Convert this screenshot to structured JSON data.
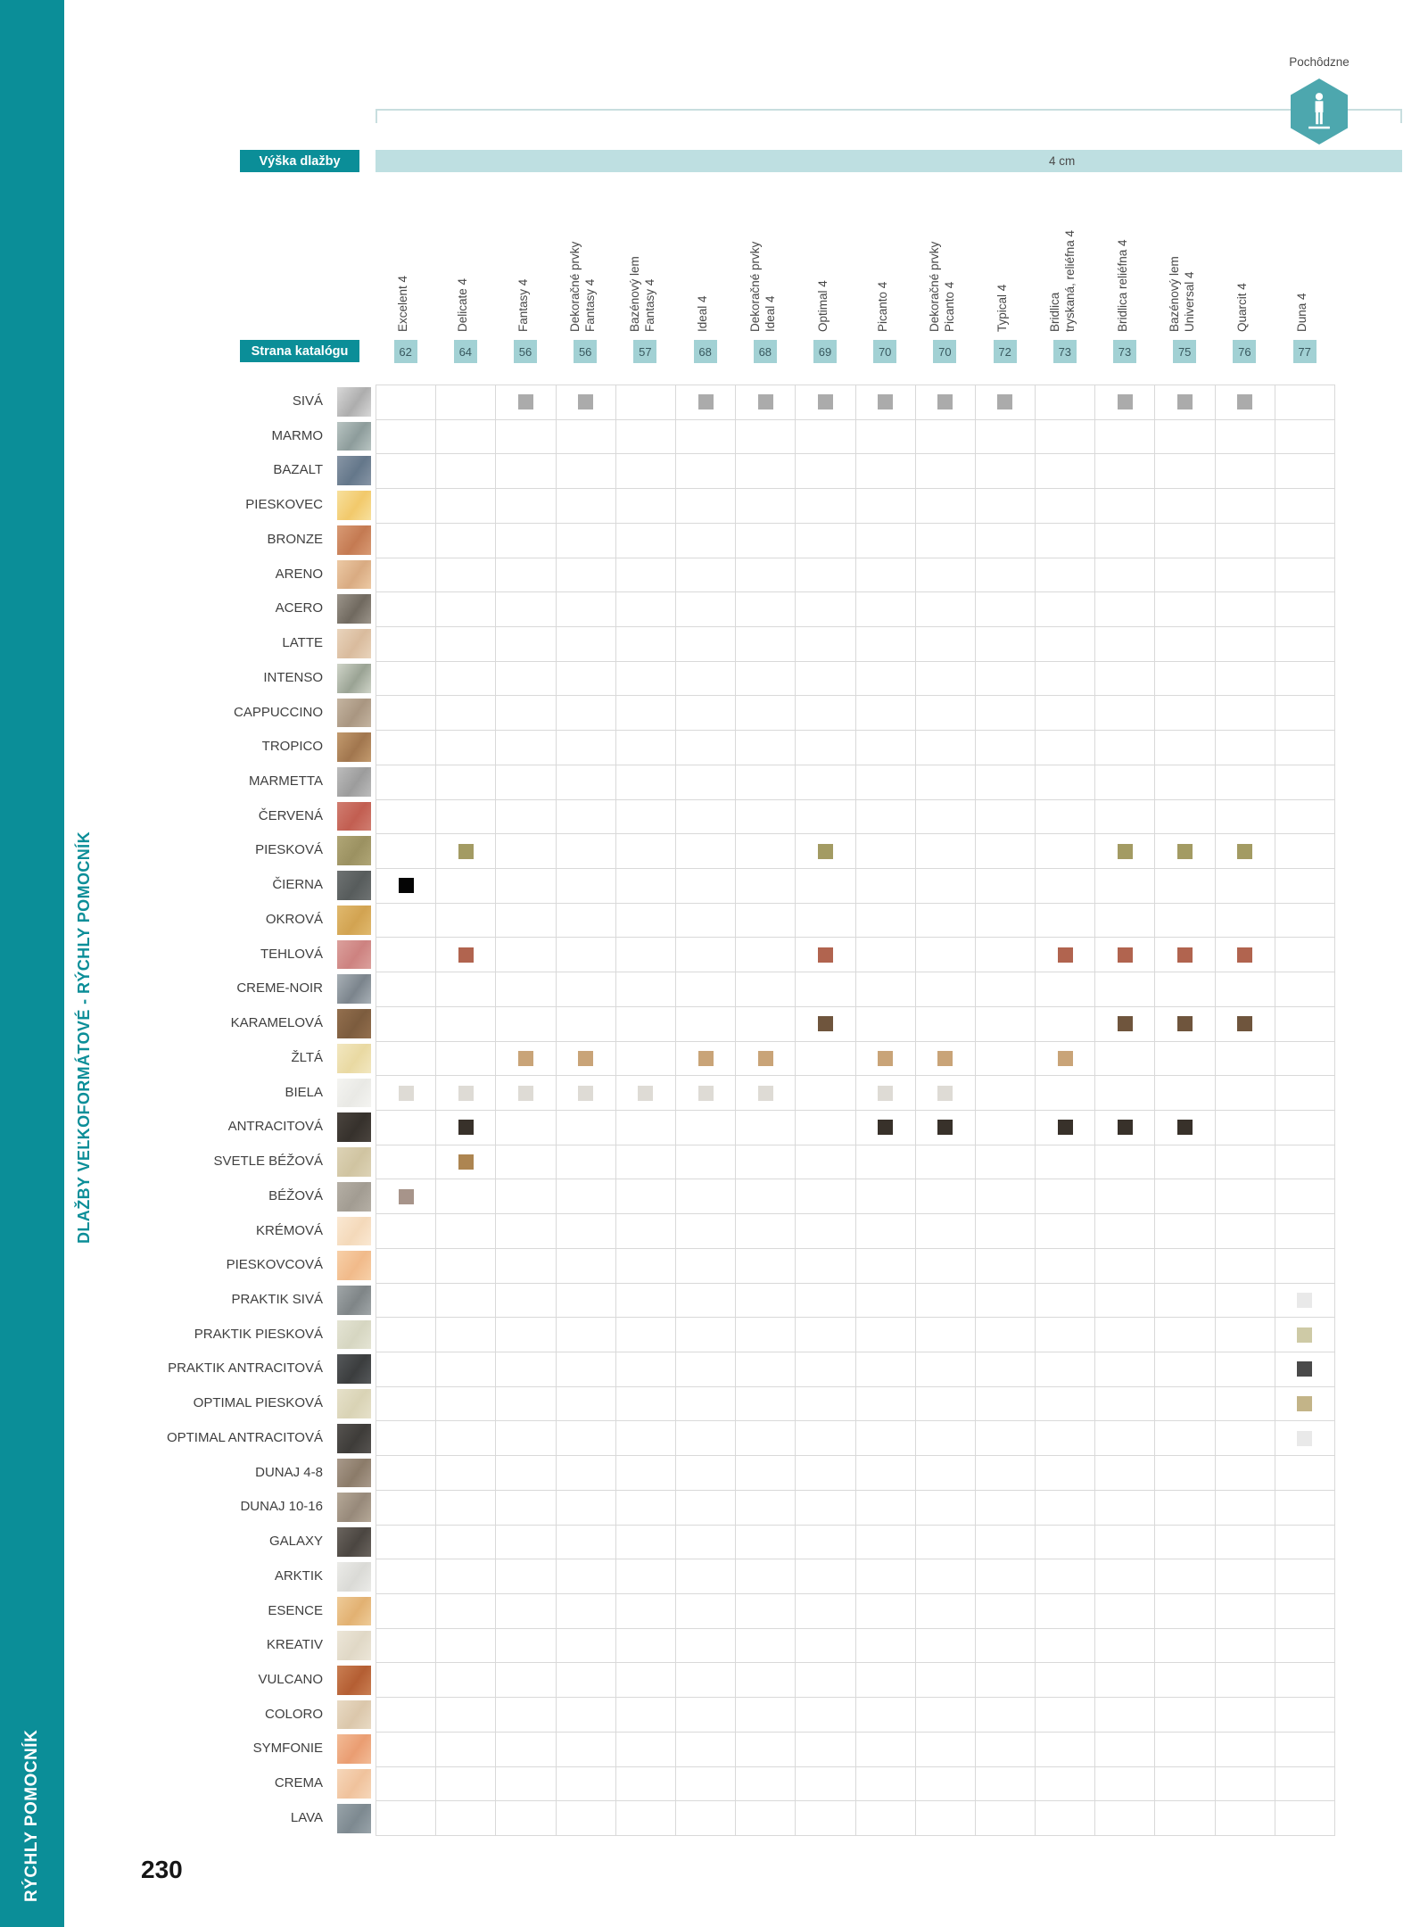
{
  "sidebar": {
    "vertical_text": "RÝCHLY POMOCNÍK"
  },
  "side_label": "DLAŽBY VEĽKOFORMÁTOVÉ - RÝCHLY POMOCNÍK",
  "page_number": "230",
  "legend": {
    "walkable_label": "Pochôdzne",
    "hexagon_color": "#4da7ae"
  },
  "header": {
    "height_label": "Výška dlažby",
    "height_value": "4 cm",
    "catalog_page_label": "Strana katalógu"
  },
  "colors": {
    "teal_dark": "#0b8e98",
    "band_teal": "#bedfe1",
    "chip_teal": "#a2d1d4",
    "gridline": "#d9d9d9"
  },
  "table": {
    "columns": [
      {
        "label": "Excelent 4",
        "page": "62"
      },
      {
        "label": "Delicate 4",
        "page": "64"
      },
      {
        "label": "Fantasy 4",
        "page": "56"
      },
      {
        "label": "Dekoračné prvky\nFantasy 4",
        "page": "56"
      },
      {
        "label": "Bazénový lem\nFantasy 4",
        "page": "57"
      },
      {
        "label": "Ideal 4",
        "page": "68"
      },
      {
        "label": "Dekoračné prvky\nIdeal 4",
        "page": "68"
      },
      {
        "label": "Optimal 4",
        "page": "69"
      },
      {
        "label": "Picanto 4",
        "page": "70"
      },
      {
        "label": "Dekoračné prvky\nPicanto 4",
        "page": "70"
      },
      {
        "label": "Typical 4",
        "page": "72"
      },
      {
        "label": "Bridlica\ntryskaná, reliéfna 4",
        "page": "73"
      },
      {
        "label": "Bridlica reliéfna 4",
        "page": "73"
      },
      {
        "label": "Bazénový lem\nUniversal 4",
        "page": "75"
      },
      {
        "label": "Quarcit 4",
        "page": "76"
      },
      {
        "label": "Duna 4",
        "page": "77"
      }
    ],
    "rows": [
      {
        "name": "SIVÁ",
        "swatch": [
          "#d8d8d8",
          "#adadad"
        ],
        "markers": {
          "3": "#ababab",
          "4": "#ababab",
          "6": "#ababab",
          "7": "#ababab",
          "8": "#ababab",
          "9": "#ababab",
          "10": "#ababab",
          "11": "#ababab",
          "13": "#ababab",
          "14": "#ababab",
          "15": "#ababab"
        }
      },
      {
        "name": "MARMO",
        "swatch": [
          "#b8c4c2",
          "#8d9c9b"
        ],
        "markers": {}
      },
      {
        "name": "BAZALT",
        "swatch": [
          "#8795a5",
          "#64778a"
        ],
        "markers": {}
      },
      {
        "name": "PIESKOVEC",
        "swatch": [
          "#f7e09d",
          "#f2c96b"
        ],
        "markers": {}
      },
      {
        "name": "BRONZE",
        "swatch": [
          "#d89a74",
          "#c47a52"
        ],
        "markers": {}
      },
      {
        "name": "ARENO",
        "swatch": [
          "#ecc9a4",
          "#d9ab82"
        ],
        "markers": {}
      },
      {
        "name": "ACERO",
        "swatch": [
          "#9b948a",
          "#70695f"
        ],
        "markers": {}
      },
      {
        "name": "LATTE",
        "swatch": [
          "#e9d4bc",
          "#d9bb9d"
        ],
        "markers": {}
      },
      {
        "name": "INTENSO",
        "swatch": [
          "#cfd4c8",
          "#9aa394"
        ],
        "markers": {}
      },
      {
        "name": "CAPPUCCINO",
        "swatch": [
          "#c4b4a0",
          "#a99681"
        ],
        "markers": {}
      },
      {
        "name": "TROPICO",
        "swatch": [
          "#c29a6e",
          "#a1764e"
        ],
        "markers": {}
      },
      {
        "name": "MARMETTA",
        "swatch": [
          "#bcbcbc",
          "#9c9c9c"
        ],
        "markers": {}
      },
      {
        "name": "ČERVENÁ",
        "swatch": [
          "#d07d70",
          "#c25e51"
        ],
        "markers": {}
      },
      {
        "name": "PIESKOVÁ",
        "swatch": [
          "#b0a676",
          "#9b9161"
        ],
        "markers": {
          "2": "#a39b63",
          "8": "#a39b63",
          "13": "#a39b63",
          "14": "#a39b63",
          "15": "#a39b63"
        }
      },
      {
        "name": "ČIERNA",
        "swatch": [
          "#6e7272",
          "#575c5c"
        ],
        "markers": {
          "1": "#050505"
        }
      },
      {
        "name": "OKROVÁ",
        "swatch": [
          "#e0b96e",
          "#d2a351"
        ],
        "markers": {}
      },
      {
        "name": "TEHLOVÁ",
        "swatch": [
          "#dba09c",
          "#cd8280"
        ],
        "markers": {
          "2": "#b1644f",
          "8": "#b1644f",
          "12": "#b1644f",
          "13": "#b1644f",
          "14": "#b1644f",
          "15": "#b1644f"
        }
      },
      {
        "name": "CREME-NOIR",
        "swatch": [
          "#a8b0b6",
          "#7b848c"
        ],
        "markers": {}
      },
      {
        "name": "KARAMELOVÁ",
        "swatch": [
          "#936f4e",
          "#7c5c3e"
        ],
        "markers": {
          "8": "#6f553d",
          "13": "#6f553d",
          "14": "#6f553d",
          "15": "#6f553d"
        }
      },
      {
        "name": "ŽLTÁ",
        "swatch": [
          "#f2e7c0",
          "#e9d9a2"
        ],
        "markers": {
          "3": "#c9a478",
          "4": "#c9a478",
          "6": "#c9a478",
          "7": "#c9a478",
          "9": "#c9a478",
          "10": "#c9a478",
          "12": "#c9a478"
        }
      },
      {
        "name": "BIELA",
        "swatch": [
          "#f4f4f1",
          "#e9e9e5"
        ],
        "markers": {
          "1": "#dedbd5",
          "2": "#dedbd5",
          "3": "#dedbd5",
          "4": "#dedbd5",
          "5": "#dedbd5",
          "6": "#dedbd5",
          "7": "#dedbd5",
          "9": "#dedbd5",
          "10": "#dedbd5"
        }
      },
      {
        "name": "ANTRACITOVÁ",
        "swatch": [
          "#4a443e",
          "#36312c"
        ],
        "markers": {
          "2": "#38312a",
          "9": "#38312a",
          "10": "#38312a",
          "12": "#38312a",
          "13": "#38312a",
          "14": "#38312a"
        }
      },
      {
        "name": "SVETLE BÉŽOVÁ",
        "swatch": [
          "#ddd3b6",
          "#d0c4a1"
        ],
        "markers": {
          "2": "#ad8551"
        }
      },
      {
        "name": "BÉŽOVÁ",
        "swatch": [
          "#b5afa5",
          "#a29c92"
        ],
        "markers": {
          "1": "#a7948a"
        }
      },
      {
        "name": "KRÉMOVÁ",
        "swatch": [
          "#fae8d2",
          "#f4d9ba"
        ],
        "markers": {}
      },
      {
        "name": "PIESKOVCOVÁ",
        "swatch": [
          "#f7d0a8",
          "#f1ba8a"
        ],
        "markers": {}
      },
      {
        "name": "PRAKTIK SIVÁ",
        "swatch": [
          "#a0a6a8",
          "#7f8587"
        ],
        "markers": {
          "16": "#e9e9e9"
        }
      },
      {
        "name": "PRAKTIK PIESKOVÁ",
        "swatch": [
          "#e4e4d4",
          "#d6d6c1"
        ],
        "markers": {
          "16": "#cecaa6"
        }
      },
      {
        "name": "PRAKTIK ANTRACITOVÁ",
        "swatch": [
          "#55585a",
          "#3b3d3e"
        ],
        "markers": {
          "16": "#4a4a4a"
        }
      },
      {
        "name": "OPTIMAL PIESKOVÁ",
        "swatch": [
          "#e6e1ca",
          "#d9d3b5"
        ],
        "markers": {
          "16": "#c3b488"
        }
      },
      {
        "name": "OPTIMAL ANTRACITOVÁ",
        "swatch": [
          "#565350",
          "#3e3c39"
        ],
        "markers": {
          "16": "#e9e9e9"
        }
      },
      {
        "name": "DUNAJ 4-8",
        "swatch": [
          "#a8998a",
          "#8b7b69"
        ],
        "markers": {}
      },
      {
        "name": "DUNAJ 10-16",
        "swatch": [
          "#b5a897",
          "#97897a"
        ],
        "markers": {}
      },
      {
        "name": "GALAXY",
        "swatch": [
          "#6a645e",
          "#4b4641"
        ],
        "markers": {}
      },
      {
        "name": "ARKTIK",
        "swatch": [
          "#ebebe8",
          "#dadad6"
        ],
        "markers": {}
      },
      {
        "name": "ESENCE",
        "swatch": [
          "#eecb98",
          "#e2b172"
        ],
        "markers": {}
      },
      {
        "name": "KREATIV",
        "swatch": [
          "#ece6d8",
          "#e0d8c6"
        ],
        "markers": {}
      },
      {
        "name": "VULCANO",
        "swatch": [
          "#c97e52",
          "#b45e33"
        ],
        "markers": {}
      },
      {
        "name": "COLORO",
        "swatch": [
          "#e8dac4",
          "#dbc7ab"
        ],
        "markers": {}
      },
      {
        "name": "SYMFONIE",
        "swatch": [
          "#f2bb96",
          "#ea9d72"
        ],
        "markers": {}
      },
      {
        "name": "CREMA",
        "swatch": [
          "#f6d7ba",
          "#f0c29c"
        ],
        "markers": {}
      },
      {
        "name": "LAVA",
        "swatch": [
          "#98a3a9",
          "#7d8990"
        ],
        "markers": {}
      }
    ]
  }
}
